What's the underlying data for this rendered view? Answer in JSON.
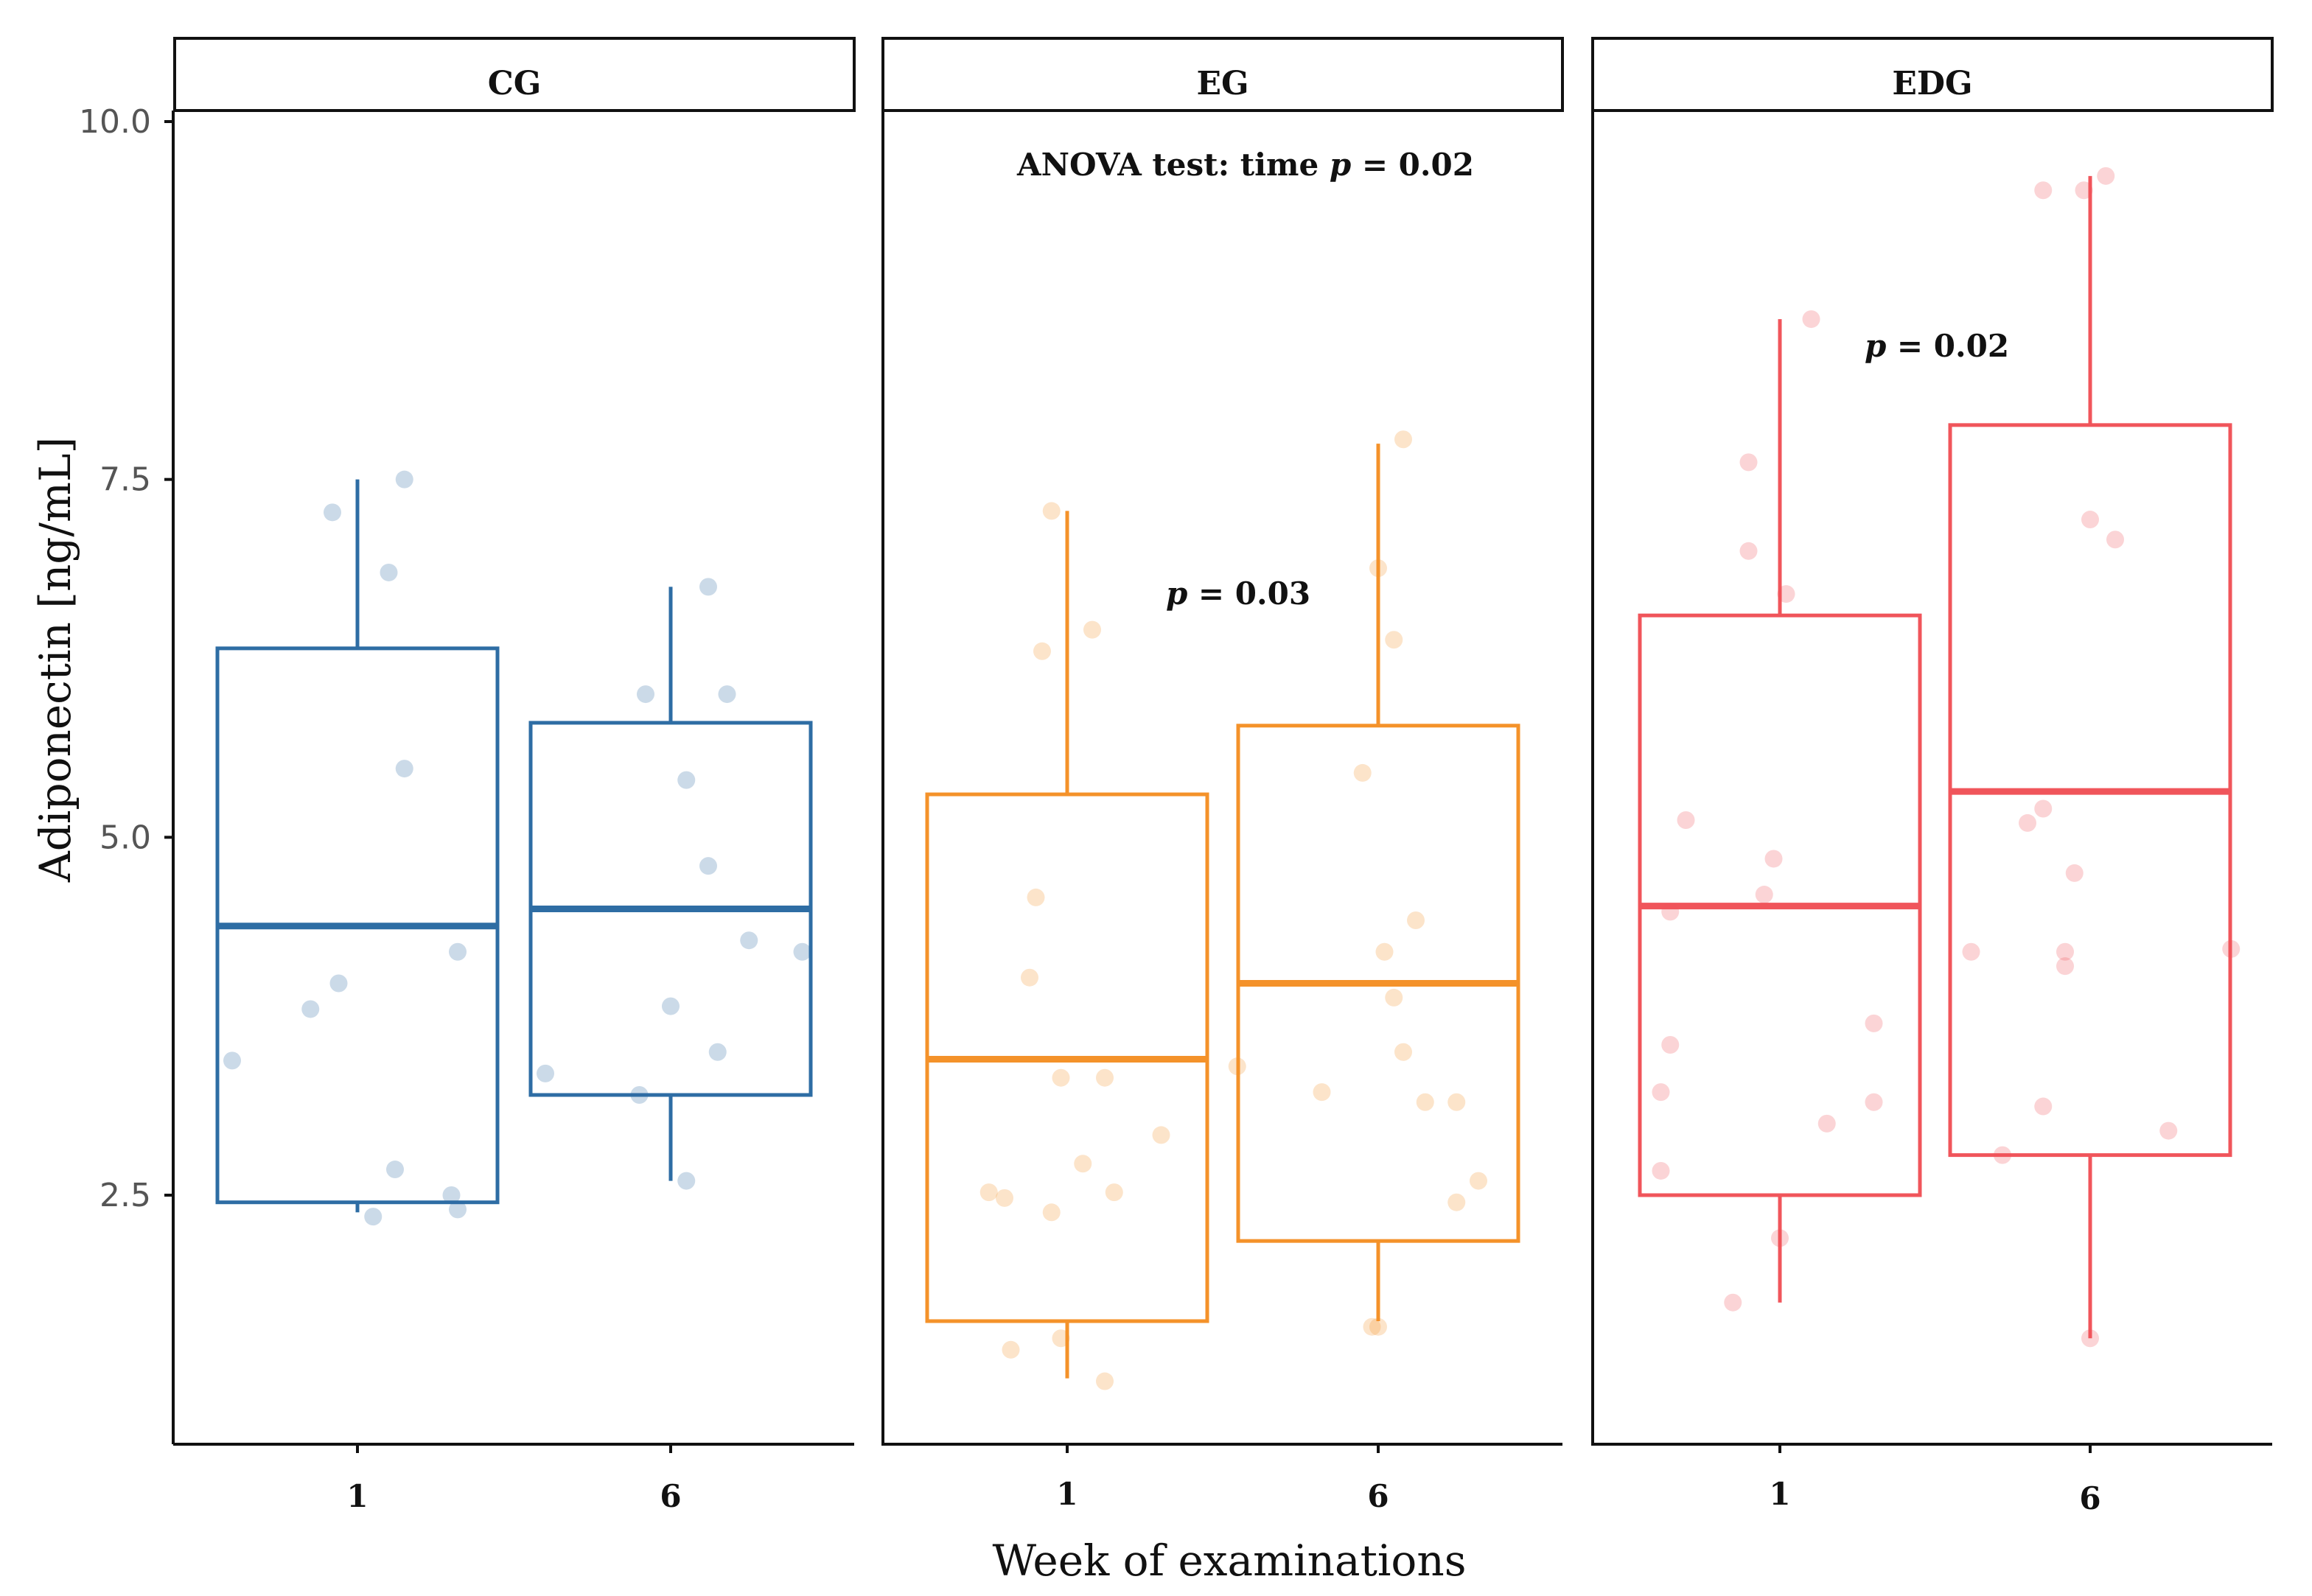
{
  "chart_data": {
    "type": "boxplot",
    "xlabel": "Week of examinations",
    "ylabel": "Adiponectin [ng/mL]",
    "ylim": [
      0.9,
      10.0
    ],
    "yticks": [
      {
        "value": 2.5,
        "label": "2.5"
      },
      {
        "value": 5.0,
        "label": "5.0"
      },
      {
        "value": 7.5,
        "label": "7.5"
      },
      {
        "value": 10.0,
        "label": "10.0"
      }
    ],
    "categories": [
      "1",
      "6"
    ],
    "annotations": [
      {
        "panel": 1,
        "prefix": "ANOVA test: time ",
        "p": "p",
        "suffix": " = 0.02"
      },
      {
        "panel": 1,
        "prefix": "",
        "p": "p",
        "suffix": " = 0.03"
      },
      {
        "panel": 2,
        "prefix": "",
        "p": "p",
        "suffix": " = 0.02"
      }
    ],
    "panels": [
      {
        "name": "CG",
        "color": "#2e6da4",
        "boxes": [
          {
            "x": "1",
            "q1": 2.45,
            "median": 4.38,
            "q3": 6.32,
            "whisker_low": 2.38,
            "whisker_high": 7.5,
            "points": [
              [
                0.6,
                3.44
              ],
              [
                0.85,
                3.8
              ],
              [
                0.92,
                7.27
              ],
              [
                0.94,
                3.98
              ],
              [
                1.1,
                6.85
              ],
              [
                1.05,
                2.35
              ],
              [
                1.12,
                2.68
              ],
              [
                1.15,
                5.48
              ],
              [
                1.15,
                7.5
              ],
              [
                1.3,
                2.5
              ],
              [
                1.32,
                2.4
              ],
              [
                1.32,
                4.2
              ]
            ]
          },
          {
            "x": "6",
            "q1": 3.2,
            "median": 4.5,
            "q3": 5.8,
            "whisker_low": 2.6,
            "whisker_high": 6.75,
            "points": [
              [
                1.6,
                3.35
              ],
              [
                1.9,
                3.2
              ],
              [
                1.92,
                6.0
              ],
              [
                2.0,
                3.82
              ],
              [
                2.05,
                2.6
              ],
              [
                2.05,
                5.4
              ],
              [
                2.12,
                6.75
              ],
              [
                2.12,
                4.8
              ],
              [
                2.15,
                3.5
              ],
              [
                2.18,
                6.0
              ],
              [
                2.25,
                4.28
              ],
              [
                2.42,
                4.2
              ]
            ]
          }
        ]
      },
      {
        "name": "EG",
        "color": "#f4922a",
        "boxes": [
          {
            "x": "1",
            "q1": 1.62,
            "median": 3.45,
            "q3": 5.3,
            "whisker_low": 1.22,
            "whisker_high": 7.28,
            "points": [
              [
                0.75,
                2.52
              ],
              [
                0.8,
                2.48
              ],
              [
                0.82,
                1.42
              ],
              [
                0.88,
                4.02
              ],
              [
                0.9,
                4.58
              ],
              [
                0.92,
                6.3
              ],
              [
                0.95,
                7.28
              ],
              [
                0.95,
                2.38
              ],
              [
                0.98,
                1.5
              ],
              [
                0.98,
                3.32
              ],
              [
                1.05,
                2.72
              ],
              [
                1.08,
                6.45
              ],
              [
                1.12,
                3.32
              ],
              [
                1.12,
                1.2
              ],
              [
                1.15,
                2.52
              ],
              [
                1.3,
                2.92
              ]
            ]
          },
          {
            "x": "6",
            "q1": 2.18,
            "median": 3.98,
            "q3": 5.78,
            "whisker_low": 1.62,
            "whisker_high": 7.75,
            "points": [
              [
                1.55,
                3.4
              ],
              [
                1.82,
                3.22
              ],
              [
                1.95,
                5.45
              ],
              [
                1.98,
                1.58
              ],
              [
                2.0,
                6.88
              ],
              [
                2.0,
                1.58
              ],
              [
                2.02,
                4.2
              ],
              [
                2.05,
                3.88
              ],
              [
                2.05,
                6.38
              ],
              [
                2.08,
                7.78
              ],
              [
                2.08,
                3.5
              ],
              [
                2.12,
                4.42
              ],
              [
                2.15,
                3.15
              ],
              [
                2.25,
                3.15
              ],
              [
                2.25,
                2.45
              ],
              [
                2.32,
                2.6
              ]
            ]
          }
        ]
      },
      {
        "name": "EDG",
        "color": "#f0555b",
        "boxes": [
          {
            "x": "1",
            "q1": 2.5,
            "median": 4.52,
            "q3": 6.55,
            "whisker_low": 1.75,
            "whisker_high": 8.62,
            "points": [
              [
                0.62,
                3.22
              ],
              [
                0.62,
                2.67
              ],
              [
                0.65,
                4.48
              ],
              [
                0.65,
                3.55
              ],
              [
                0.7,
                5.12
              ],
              [
                0.85,
                1.75
              ],
              [
                0.9,
                7.62
              ],
              [
                0.9,
                7.0
              ],
              [
                0.95,
                4.6
              ],
              [
                0.98,
                4.85
              ],
              [
                1.0,
                2.2
              ],
              [
                1.02,
                6.7
              ],
              [
                1.1,
                8.62
              ],
              [
                1.15,
                3.0
              ],
              [
                1.3,
                3.15
              ],
              [
                1.3,
                3.7
              ]
            ]
          },
          {
            "x": "6",
            "q1": 2.78,
            "median": 5.32,
            "q3": 7.88,
            "whisker_low": 1.5,
            "whisker_high": 9.62,
            "points": [
              [
                1.62,
                4.2
              ],
              [
                1.72,
                2.78
              ],
              [
                1.8,
                5.1
              ],
              [
                1.85,
                3.12
              ],
              [
                1.85,
                9.52
              ],
              [
                1.85,
                5.2
              ],
              [
                1.92,
                4.2
              ],
              [
                1.92,
                4.1
              ],
              [
                1.95,
                4.75
              ],
              [
                1.98,
                9.52
              ],
              [
                2.0,
                7.22
              ],
              [
                2.0,
                1.5
              ],
              [
                2.05,
                9.62
              ],
              [
                2.08,
                7.08
              ],
              [
                2.25,
                2.95
              ],
              [
                2.45,
                4.22
              ]
            ]
          }
        ]
      }
    ]
  }
}
